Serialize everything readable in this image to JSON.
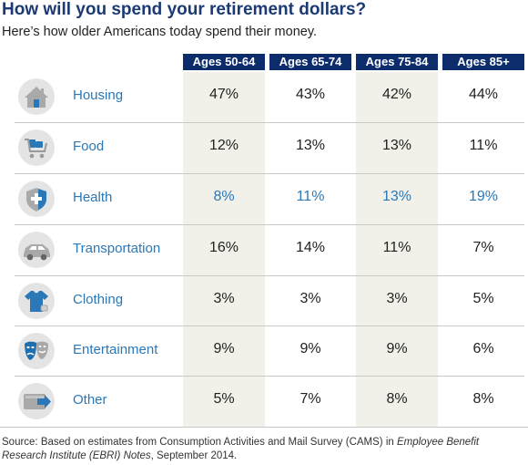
{
  "title": "How will you spend your retirement dollars?",
  "subtitle": "Here’s how older Americans today spend their money.",
  "headers": [
    "Ages 50-64",
    "Ages 65-74",
    "Ages 75-84",
    "Ages 85+"
  ],
  "rows": [
    {
      "category": "Housing",
      "icon": "house-icon",
      "values": [
        "47%",
        "43%",
        "42%",
        "44%"
      ]
    },
    {
      "category": "Food",
      "icon": "shopping-cart-icon",
      "values": [
        "12%",
        "13%",
        "13%",
        "11%"
      ]
    },
    {
      "category": "Health",
      "icon": "shield-cross-icon",
      "values": [
        "8%",
        "11%",
        "13%",
        "19%"
      ]
    },
    {
      "category": "Transportation",
      "icon": "car-icon",
      "values": [
        "16%",
        "14%",
        "11%",
        "7%"
      ]
    },
    {
      "category": "Clothing",
      "icon": "tshirt-icon",
      "values": [
        "3%",
        "3%",
        "3%",
        "5%"
      ]
    },
    {
      "category": "Entertainment",
      "icon": "theater-masks-icon",
      "values": [
        "9%",
        "9%",
        "9%",
        "6%"
      ]
    },
    {
      "category": "Other",
      "icon": "wallet-icon",
      "values": [
        "5%",
        "7%",
        "8%",
        "8%"
      ]
    }
  ],
  "source": {
    "prefix": "Source: Based on estimates from Consumption Activities and Mail Survey (CAMS) in ",
    "italic": "Employee Benefit Research Institute (EBRI) Notes",
    "suffix": ", September 2014."
  },
  "colors": {
    "header_bg": "#0d2c6c",
    "accent": "#2a78b7",
    "column_shade": "#f1f1ea"
  }
}
